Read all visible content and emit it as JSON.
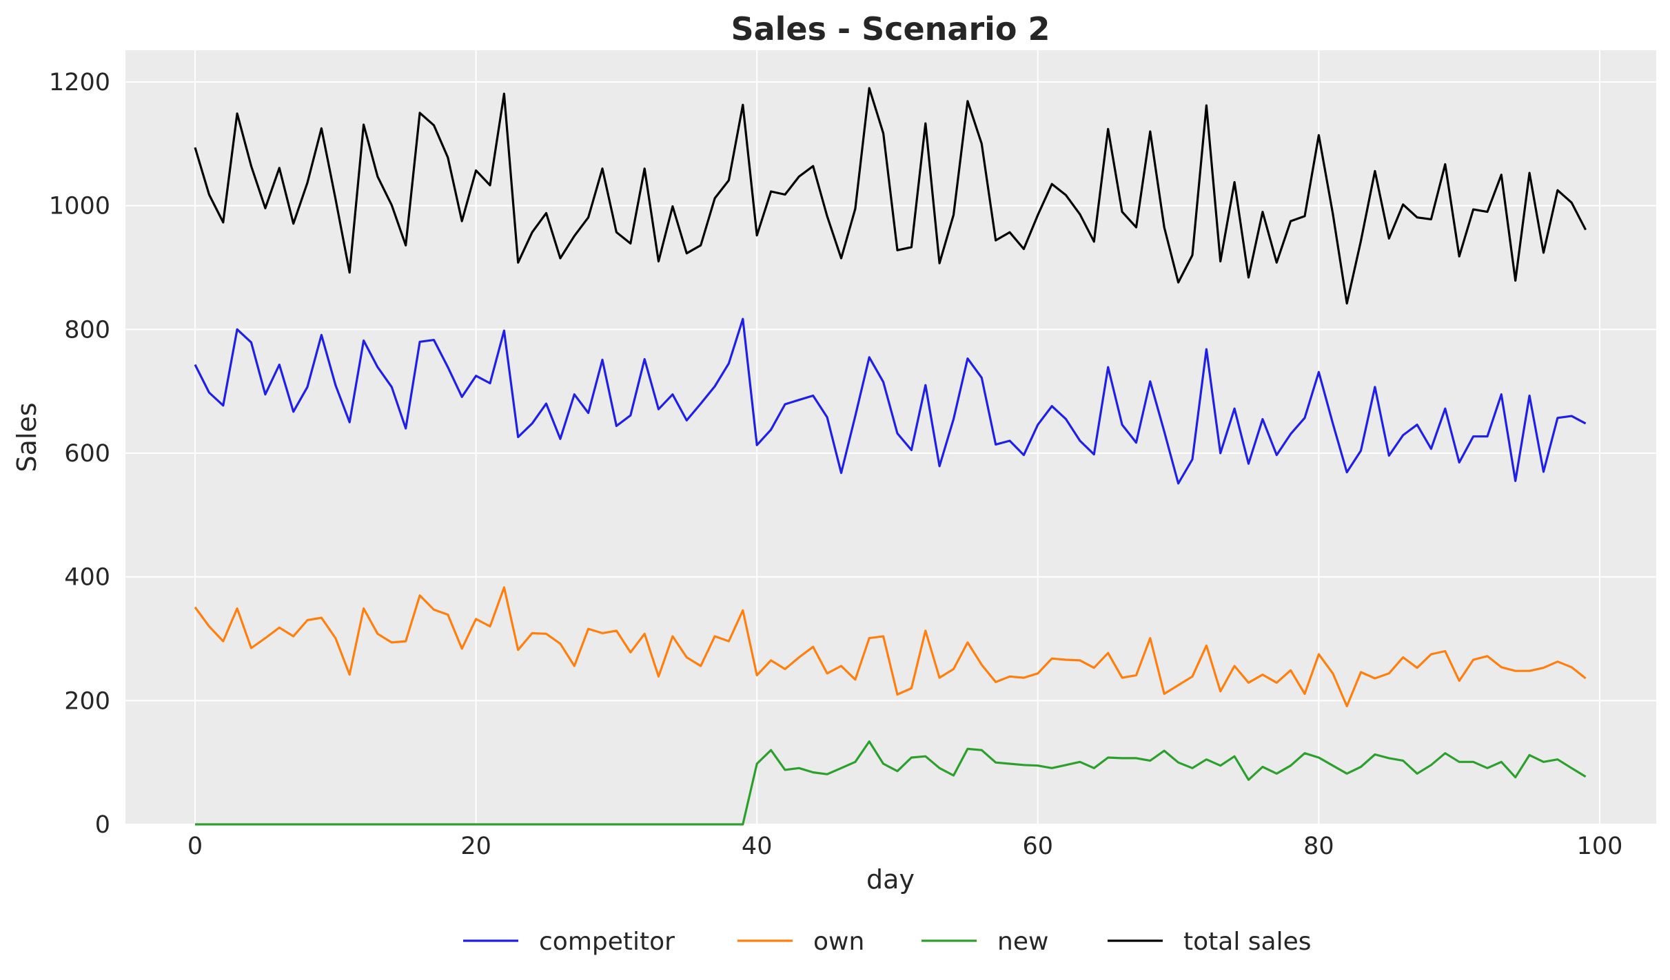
{
  "chart_data": {
    "type": "line",
    "title": "Sales - Scenario 2",
    "xlabel": "day",
    "ylabel": "Sales",
    "xlim": [
      -5,
      104
    ],
    "ylim": [
      0,
      1250
    ],
    "xticks": [
      0,
      20,
      40,
      60,
      80,
      100
    ],
    "yticks": [
      0,
      200,
      400,
      600,
      800,
      1000,
      1200
    ],
    "grid": true,
    "legend": "bottom-center",
    "x_start": 0,
    "series": [
      {
        "name": "competitor",
        "color": "#1f1fe6",
        "values": [
          743,
          698,
          677,
          800,
          779,
          695,
          743,
          667,
          707,
          791,
          710,
          650,
          782,
          739,
          707,
          640,
          780,
          783,
          739,
          691,
          725,
          713,
          798,
          626,
          648,
          680,
          623,
          695,
          665,
          751,
          644,
          661,
          752,
          671,
          695,
          653,
          680,
          708,
          745,
          817,
          613,
          638,
          679,
          686,
          693,
          658,
          568,
          660,
          755,
          715,
          632,
          605,
          710,
          579,
          655,
          753,
          722,
          614,
          620,
          597,
          646,
          676,
          655,
          620,
          598,
          739,
          646,
          617,
          716,
          635,
          551,
          590,
          768,
          600,
          672,
          583,
          655,
          597,
          631,
          657,
          731,
          648,
          569,
          604,
          707,
          596,
          629,
          646,
          607,
          672,
          585,
          627,
          627,
          695,
          555,
          693,
          570,
          657,
          660,
          648
        ]
      },
      {
        "name": "own",
        "color": "#ff7f0e",
        "values": [
          351,
          320,
          296,
          349,
          285,
          301,
          318,
          304,
          330,
          334,
          301,
          242,
          349,
          308,
          294,
          296,
          370,
          347,
          339,
          284,
          332,
          320,
          383,
          282,
          309,
          308,
          292,
          256,
          316,
          309,
          313,
          278,
          308,
          239,
          304,
          270,
          256,
          304,
          296,
          346,
          241,
          265,
          251,
          270,
          287,
          244,
          256,
          234,
          301,
          304,
          210,
          220,
          313,
          237,
          251,
          294,
          258,
          230,
          239,
          237,
          244,
          268,
          266,
          265,
          253,
          277,
          237,
          241,
          301,
          211,
          225,
          239,
          289,
          215,
          256,
          229,
          242,
          229,
          249,
          211,
          275,
          244,
          191,
          246,
          236,
          244,
          270,
          253,
          275,
          280,
          232,
          266,
          272,
          254,
          248,
          248,
          253,
          263,
          254,
          236
        ]
      },
      {
        "name": "new",
        "color": "#2ca02c",
        "values": [
          0,
          0,
          0,
          0,
          0,
          0,
          0,
          0,
          0,
          0,
          0,
          0,
          0,
          0,
          0,
          0,
          0,
          0,
          0,
          0,
          0,
          0,
          0,
          0,
          0,
          0,
          0,
          0,
          0,
          0,
          0,
          0,
          0,
          0,
          0,
          0,
          0,
          0,
          0,
          0,
          98,
          120,
          88,
          91,
          84,
          81,
          91,
          101,
          134,
          98,
          86,
          108,
          110,
          91,
          79,
          122,
          120,
          100,
          98,
          96,
          95,
          91,
          96,
          101,
          91,
          108,
          107,
          107,
          103,
          119,
          100,
          91,
          105,
          95,
          110,
          72,
          93,
          82,
          95,
          115,
          108,
          95,
          82,
          93,
          113,
          107,
          103,
          82,
          96,
          115,
          101,
          101,
          91,
          101,
          76,
          112,
          101,
          105,
          91,
          77
        ]
      },
      {
        "name": "total sales",
        "color": "#000000",
        "values": [
          1094,
          1018,
          973,
          1149,
          1064,
          996,
          1061,
          971,
          1037,
          1125,
          1011,
          892,
          1131,
          1047,
          1001,
          936,
          1150,
          1130,
          1078,
          975,
          1057,
          1033,
          1181,
          908,
          957,
          988,
          915,
          951,
          981,
          1060,
          957,
          939,
          1060,
          910,
          999,
          923,
          936,
          1012,
          1041,
          1163,
          952,
          1023,
          1018,
          1047,
          1064,
          983,
          915,
          995,
          1190,
          1117,
          928,
          933,
          1133,
          907,
          985,
          1169,
          1100,
          944,
          957,
          930,
          985,
          1035,
          1017,
          986,
          942,
          1124,
          990,
          965,
          1120,
          965,
          876,
          920,
          1162,
          910,
          1038,
          884,
          990,
          908,
          975,
          983,
          1114,
          987,
          842,
          943,
          1056,
          947,
          1002,
          981,
          978,
          1067,
          918,
          994,
          990,
          1050,
          879,
          1053,
          924,
          1025,
          1005,
          961
        ]
      }
    ]
  }
}
